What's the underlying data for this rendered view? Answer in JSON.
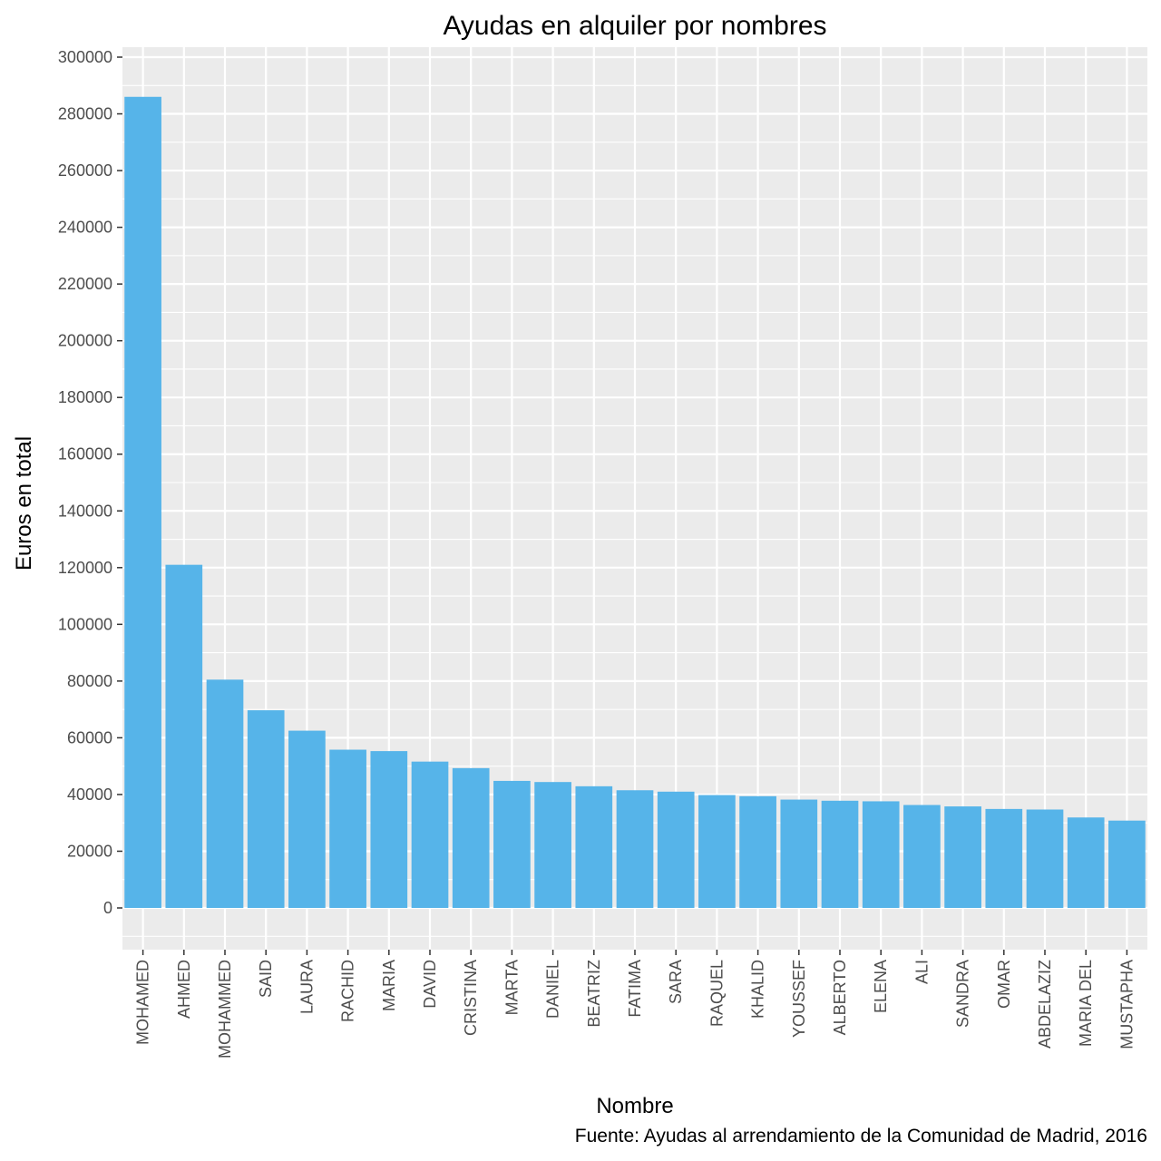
{
  "chart_data": {
    "type": "bar",
    "title": "Ayudas en alquiler por nombres",
    "xlabel": "Nombre",
    "ylabel": "Euros en total",
    "caption": "Fuente: Ayudas al arrendamiento de la Comunidad de Madrid, 2016",
    "categories": [
      "MOHAMED",
      "AHMED",
      "MOHAMMED",
      "SAID",
      "LAURA",
      "RACHID",
      "MARIA",
      "DAVID",
      "CRISTINA",
      "MARTA",
      "DANIEL",
      "BEATRIZ",
      "FATIMA",
      "SARA",
      "RAQUEL",
      "KHALID",
      "YOUSSEF",
      "ALBERTO",
      "ELENA",
      "ALI",
      "SANDRA",
      "OMAR",
      "ABDELAZIZ",
      "MARIA DEL",
      "MUSTAPHA"
    ],
    "values": [
      286000,
      121000,
      80500,
      69700,
      62500,
      55800,
      55300,
      51600,
      49300,
      44800,
      44400,
      42900,
      41500,
      41000,
      39800,
      39400,
      38200,
      37800,
      37600,
      36300,
      35800,
      34900,
      34700,
      31900,
      30800
    ],
    "ylim": [
      -14500,
      305000
    ],
    "yticks": [
      "0",
      "20000",
      "40000",
      "60000",
      "80000",
      "100000",
      "120000",
      "140000",
      "160000",
      "180000",
      "200000",
      "220000",
      "240000",
      "260000",
      "280000",
      "300000"
    ],
    "grid": true,
    "colors": {
      "bar": "#56b4e9",
      "panel_background": "#ebebeb",
      "grid": "#ffffff",
      "tick_text": "#4d4d4d"
    }
  }
}
